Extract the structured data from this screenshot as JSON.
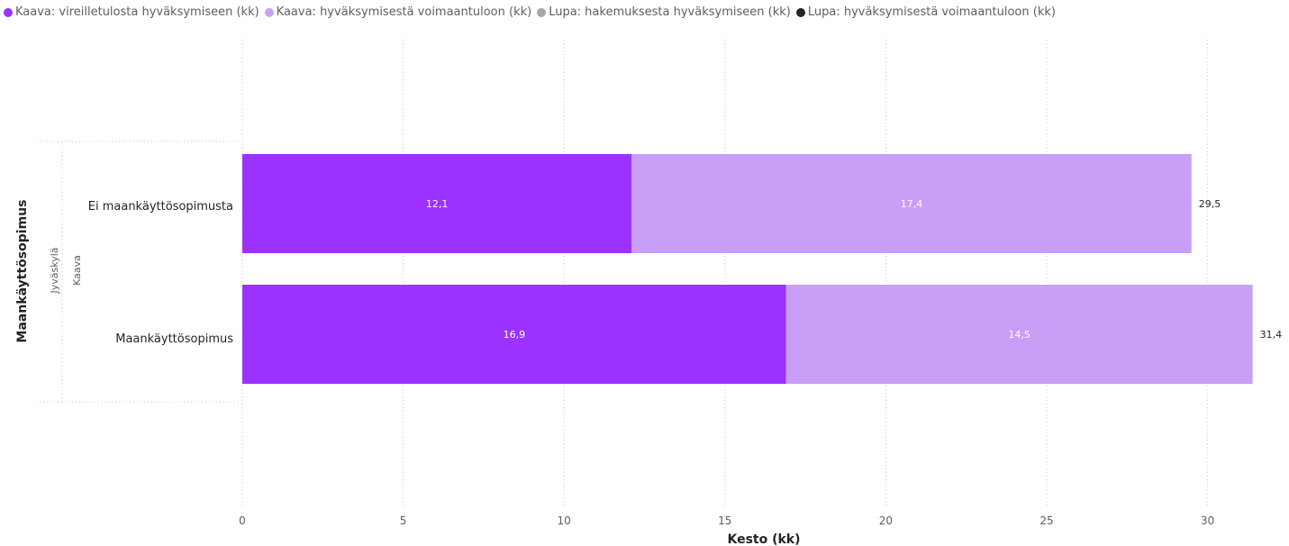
{
  "legend": [
    {
      "label": "Kaava: vireilletulosta hyväksymiseen (kk)",
      "color": "#9b32ff"
    },
    {
      "label": "Kaava: hyväksymisestä voimaantuloon (kk)",
      "color": "#c89ef7"
    },
    {
      "label": "Lupa: hakemuksesta hyväksymiseen (kk)",
      "color": "#a6a6a6"
    },
    {
      "label": "Lupa: hyväksymisestä voimaantuloon (kk)",
      "color": "#252423"
    }
  ],
  "chart_data": {
    "type": "bar",
    "orientation": "horizontal",
    "stacked": true,
    "xlabel": "Kesto (kk)",
    "ylabel": "Maankäyttösopimus",
    "group_labels": [
      "Jyväskylä",
      "Kaava"
    ],
    "categories": [
      "Ei maankäyttösopimusta",
      "Maankäyttösopimus"
    ],
    "series": [
      {
        "name": "Kaava: vireilletulosta hyväksymiseen (kk)",
        "color": "#9b32ff",
        "values": [
          12.1,
          16.9
        ],
        "labels": [
          "12,1",
          "16,9"
        ]
      },
      {
        "name": "Kaava: hyväksymisestä voimaantuloon (kk)",
        "color": "#c89ef7",
        "values": [
          17.4,
          14.5
        ],
        "labels": [
          "17,4",
          "14,5"
        ]
      }
    ],
    "totals": [
      "29,5",
      "31,4"
    ],
    "xlim": [
      0,
      32
    ],
    "xticks": [
      0,
      5,
      10,
      15,
      20,
      25,
      30
    ],
    "grid": true,
    "legend_position": "top-left"
  }
}
